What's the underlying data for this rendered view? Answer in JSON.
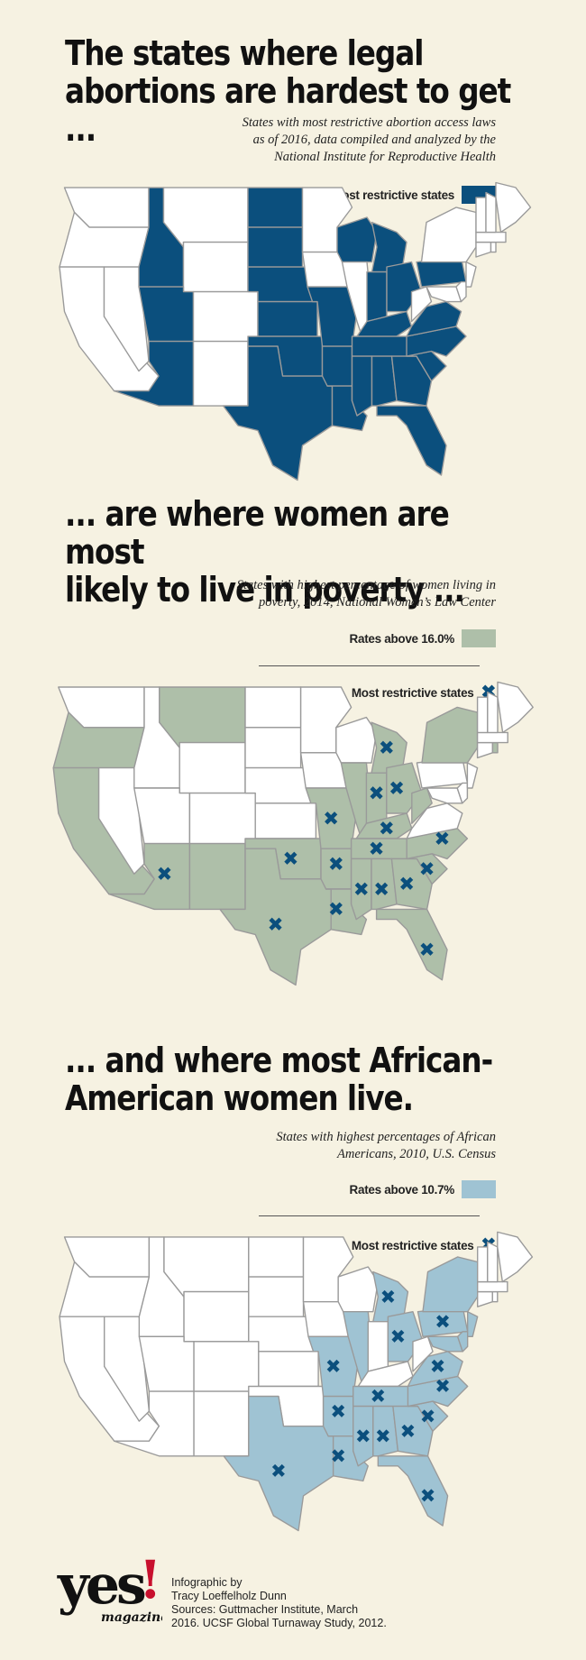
{
  "section1": {
    "headline_line1": "The states where legal",
    "headline_line2": "abortions are hardest to get ...",
    "subtitle_line1": "States with most restrictive abortion access laws",
    "subtitle_line2": "as of 2016, data compiled and analyzed by the",
    "subtitle_line3": "National Institute for Reproductive Health",
    "legend_label": "Most restrictive states",
    "color": "#0b4f7d",
    "highlighted_states": [
      "ID",
      "UT",
      "AZ",
      "ND",
      "SD",
      "NE",
      "KS",
      "OK",
      "TX",
      "MO",
      "AR",
      "LA",
      "WI",
      "MI",
      "IN",
      "OH",
      "KY",
      "TN",
      "MS",
      "AL",
      "GA",
      "FL",
      "SC",
      "NC",
      "VA",
      "PA"
    ]
  },
  "section2": {
    "headline_line1": "... are where women are most",
    "headline_line2": "likely to live in poverty ...",
    "subtitle_line1": "States with highest percentage of women living in",
    "subtitle_line2": "poverty, 2014, National Women’s Law Center",
    "legend_rate_label": "Rates above 16.0%",
    "legend_x_label": "Most restrictive states",
    "fill_color": "#aebfa9",
    "x_color": "#0b4f7d",
    "x_glyph": "✖",
    "highlighted_states": [
      "OR",
      "CA",
      "MT",
      "AZ",
      "NM",
      "TX",
      "OK",
      "MO",
      "AR",
      "LA",
      "MS",
      "AL",
      "GA",
      "FL",
      "SC",
      "NC",
      "TN",
      "KY",
      "WV",
      "OH",
      "IN",
      "MI",
      "IL",
      "NY",
      "RI"
    ]
  },
  "section3": {
    "headline_line1": "... and where most African-",
    "headline_line2": "American women live.",
    "subtitle_line1": "States with highest percentages of African",
    "subtitle_line2": "Americans, 2010, U.S. Census",
    "legend_rate_label": "Rates above 10.7%",
    "legend_x_label": "Most restrictive states",
    "fill_color": "#9fc3d3",
    "x_color": "#0b4f7d",
    "x_glyph": "✖",
    "highlighted_states": [
      "TX",
      "MO",
      "AR",
      "LA",
      "MS",
      "AL",
      "GA",
      "FL",
      "SC",
      "NC",
      "TN",
      "VA",
      "MD",
      "DE",
      "NJ",
      "NY",
      "PA",
      "OH",
      "MI",
      "IL"
    ]
  },
  "footer": {
    "logo_text": "yes",
    "logo_mark": "!",
    "logo_sub": "magazine",
    "credit_line1": "Infographic by",
    "credit_line2": "Tracy Loeffelholz Dunn",
    "credit_line3": "Sources: Guttmacher Institute, March",
    "credit_line4": "2016. UCSF Global Turnaway Study, 2012.",
    "logo_color": "#111111",
    "logo_accent": "#c8102e"
  }
}
